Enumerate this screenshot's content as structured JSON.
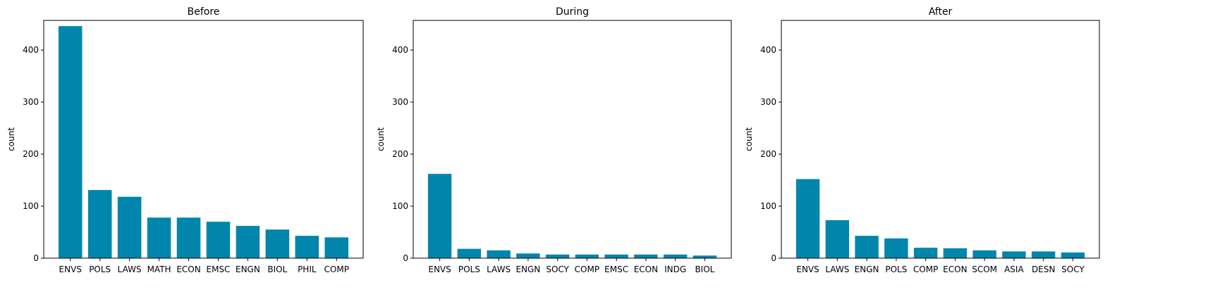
{
  "style": {
    "bar_color": "#0086AD",
    "axis_color": "#000000",
    "background": "#FFFFFF"
  },
  "chart_data": [
    {
      "type": "bar",
      "title": "Before",
      "xlabel": "",
      "ylabel": "count",
      "ylim": [
        0,
        457
      ],
      "yticks": [
        "0",
        "100",
        "200",
        "300",
        "400"
      ],
      "grid": false,
      "categories": [
        "ENVS",
        "POLS",
        "LAWS",
        "MATH",
        "ECON",
        "EMSC",
        "ENGN",
        "BIOL",
        "PHIL",
        "COMP"
      ],
      "values": [
        446,
        131,
        118,
        78,
        78,
        70,
        62,
        55,
        43,
        40
      ]
    },
    {
      "type": "bar",
      "title": "During",
      "xlabel": "",
      "ylabel": "count",
      "ylim": [
        0,
        457
      ],
      "yticks": [
        "0",
        "100",
        "200",
        "300",
        "400"
      ],
      "grid": false,
      "categories": [
        "ENVS",
        "POLS",
        "LAWS",
        "ENGN",
        "SOCY",
        "COMP",
        "EMSC",
        "ECON",
        "INDG",
        "BIOL"
      ],
      "values": [
        162,
        18,
        15,
        9,
        7,
        7,
        7,
        7,
        7,
        5
      ]
    },
    {
      "type": "bar",
      "title": "After",
      "xlabel": "",
      "ylabel": "count",
      "ylim": [
        0,
        457
      ],
      "yticks": [
        "0",
        "100",
        "200",
        "300",
        "400"
      ],
      "grid": false,
      "categories": [
        "ENVS",
        "LAWS",
        "ENGN",
        "POLS",
        "COMP",
        "ECON",
        "SCOM",
        "ASIA",
        "DESN",
        "SOCY"
      ],
      "values": [
        152,
        73,
        43,
        38,
        20,
        19,
        15,
        13,
        13,
        11
      ]
    }
  ]
}
